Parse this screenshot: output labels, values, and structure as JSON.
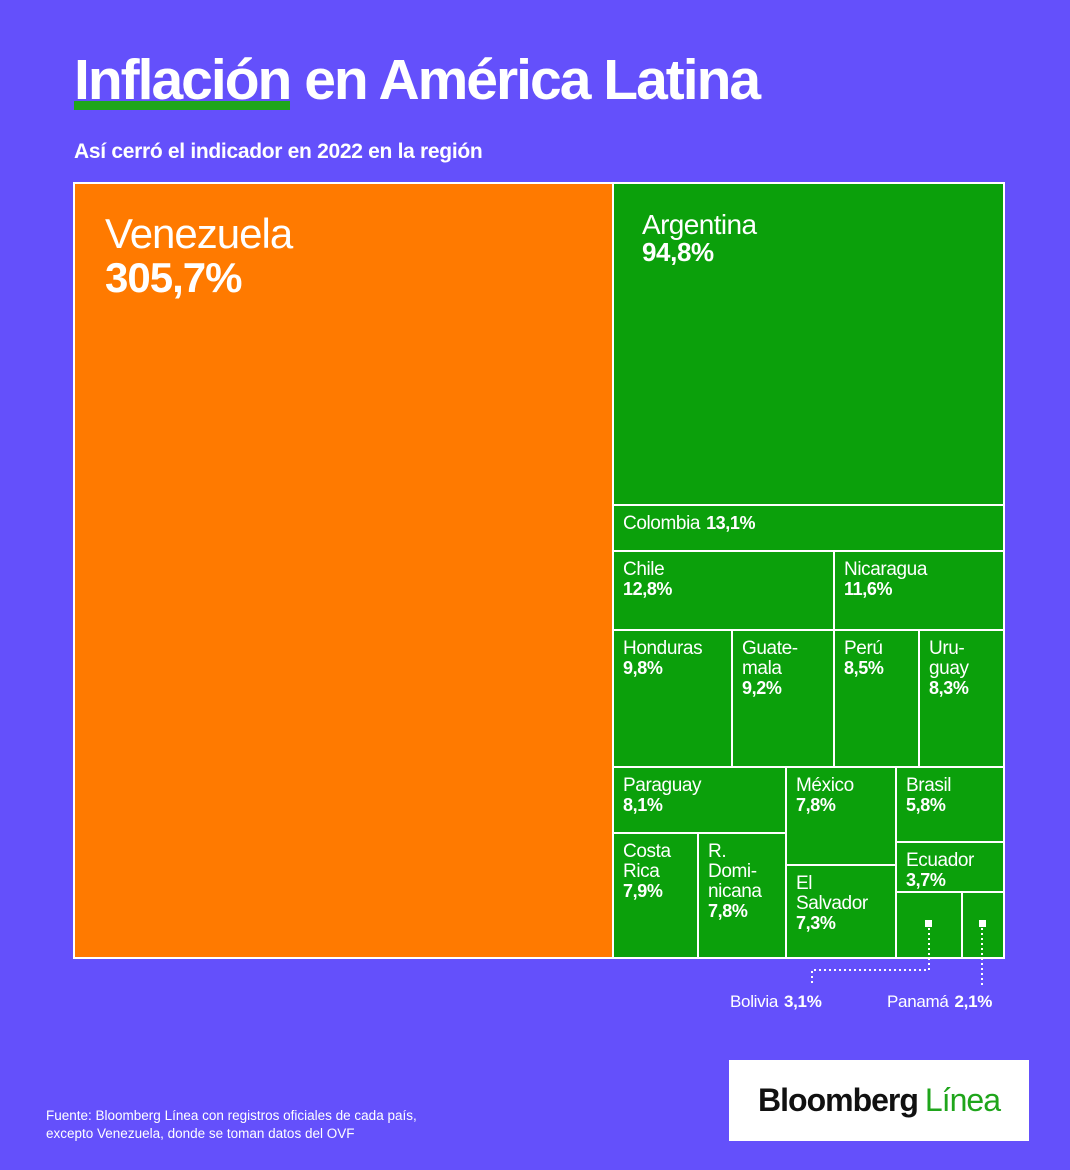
{
  "header": {
    "title_highlight": "Inflación",
    "title_rest": "en América Latina",
    "subtitle": "Así cerró el indicador en 2022 en la región"
  },
  "colors": {
    "background": "#6450fb",
    "venezuela": "#ff7a00",
    "others": "#0ba00b",
    "accent_underline": "#1fa51b",
    "border": "#ffffff"
  },
  "chart_data": {
    "type": "treemap",
    "unit": "%",
    "items": [
      {
        "name": "Venezuela",
        "value": 305.7,
        "label": "305,7%"
      },
      {
        "name": "Argentina",
        "value": 94.8,
        "label": "94,8%"
      },
      {
        "name": "Colombia",
        "value": 13.1,
        "label": "13,1%"
      },
      {
        "name": "Chile",
        "value": 12.8,
        "label": "12,8%"
      },
      {
        "name": "Nicaragua",
        "value": 11.6,
        "label": "11,6%"
      },
      {
        "name": "Honduras",
        "value": 9.8,
        "label": "9,8%"
      },
      {
        "name": "Guate-\nmala",
        "value": 9.2,
        "label": "9,2%"
      },
      {
        "name": "Perú",
        "value": 8.5,
        "label": "8,5%"
      },
      {
        "name": "Uru-\nguay",
        "value": 8.3,
        "label": "8,3%"
      },
      {
        "name": "Paraguay",
        "value": 8.1,
        "label": "8,1%"
      },
      {
        "name": "México",
        "value": 7.8,
        "label": "7,8%"
      },
      {
        "name": "Brasil",
        "value": 5.8,
        "label": "5,8%"
      },
      {
        "name": "Costa\nRica",
        "value": 7.9,
        "label": "7,9%"
      },
      {
        "name": "R. Domi-\nnicana",
        "value": 7.8,
        "label": "7,8%"
      },
      {
        "name": "El Salvador",
        "value": 7.3,
        "label": "7,3%"
      },
      {
        "name": "Ecuador",
        "value": 3.7,
        "label": "3,7%"
      },
      {
        "name": "Bolivia",
        "value": 3.1,
        "label": "3,1%"
      },
      {
        "name": "Panamá",
        "value": 2.1,
        "label": "2,1%"
      }
    ]
  },
  "footer": {
    "source": "Fuente: Bloomberg Línea con registros oficiales de cada país, excepto Venezuela, donde se toman datos del OVF",
    "logo_part1": "Bloomberg",
    "logo_part2": "Línea"
  }
}
